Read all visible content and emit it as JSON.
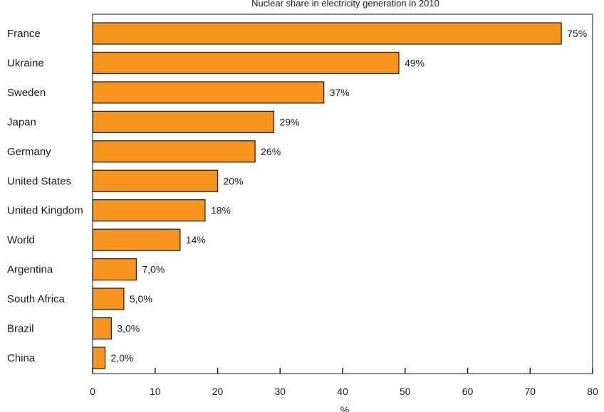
{
  "chart_data": {
    "type": "bar",
    "orientation": "horizontal",
    "title": "Nuclear share in electricity generation in 2010",
    "xlabel": "%",
    "ylabel": "",
    "xlim": [
      0,
      80
    ],
    "xticks": [
      0,
      10,
      20,
      30,
      40,
      50,
      60,
      70,
      80
    ],
    "grid": false,
    "bar_color": "#f7941d",
    "bar_edge_color": "#1a1a1a",
    "categories": [
      "France",
      "Ukraine",
      "Sweden",
      "Japan",
      "Germany",
      "United States",
      "United Kingdom",
      "World",
      "Argentina",
      "South Africa",
      "Brazil",
      "China"
    ],
    "values": [
      75,
      49,
      37,
      29,
      26,
      20,
      18,
      14,
      7.0,
      5.0,
      3.0,
      2.0
    ],
    "value_labels": [
      "75%",
      "49%",
      "37%",
      "29%",
      "26%",
      "20%",
      "18%",
      "14%",
      "7,0%",
      "5,0%",
      "3,0%",
      "2,0%"
    ]
  }
}
